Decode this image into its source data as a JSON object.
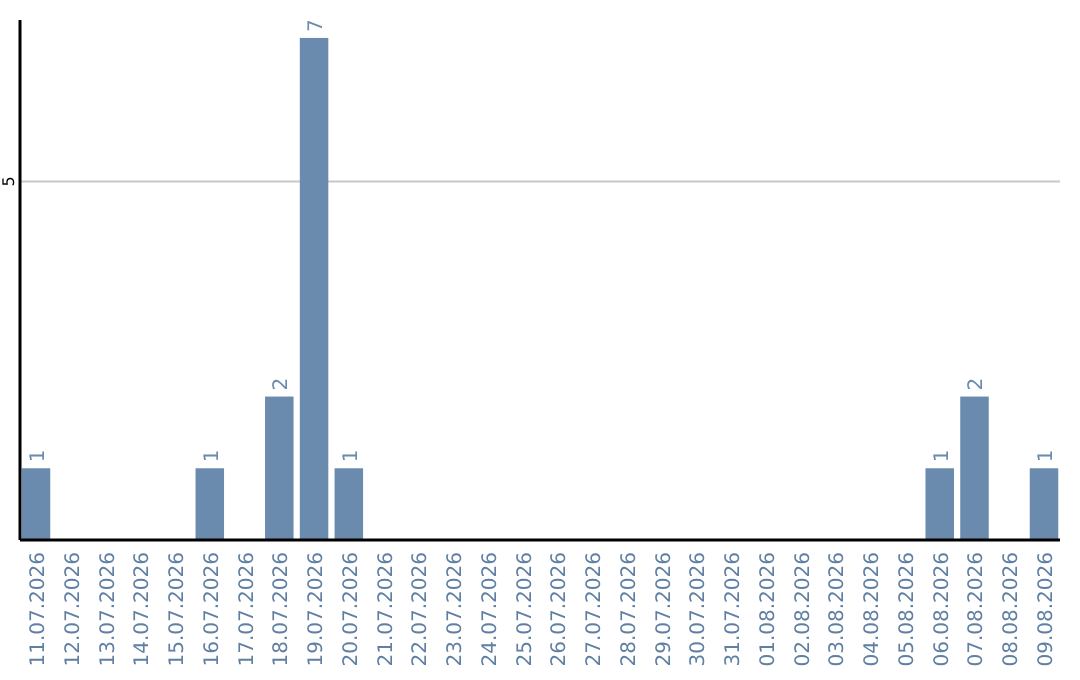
{
  "chart_data": {
    "type": "bar",
    "categories": [
      "11.07.2026",
      "12.07.2026",
      "13.07.2026",
      "14.07.2026",
      "15.07.2026",
      "16.07.2026",
      "17.07.2026",
      "18.07.2026",
      "19.07.2026",
      "20.07.2026",
      "21.07.2026",
      "22.07.2026",
      "23.07.2026",
      "24.07.2026",
      "25.07.2026",
      "26.07.2026",
      "27.07.2026",
      "28.07.2026",
      "29.07.2026",
      "30.07.2026",
      "31.07.2026",
      "01.08.2026",
      "02.08.2026",
      "03.08.2026",
      "04.08.2026",
      "05.08.2026",
      "06.08.2026",
      "07.08.2026",
      "08.08.2026",
      "09.08.2026"
    ],
    "values": [
      1,
      0,
      0,
      0,
      0,
      1,
      0,
      2,
      7,
      1,
      0,
      0,
      0,
      0,
      0,
      0,
      0,
      0,
      0,
      0,
      0,
      0,
      0,
      0,
      0,
      0,
      1,
      2,
      0,
      1
    ],
    "value_labels": [
      "1",
      null,
      null,
      null,
      null,
      "1",
      null,
      "2",
      "7",
      "1",
      null,
      null,
      null,
      null,
      null,
      null,
      null,
      null,
      null,
      null,
      null,
      null,
      null,
      null,
      null,
      null,
      "1",
      "2",
      null,
      "1"
    ],
    "color": "#6a8bad",
    "ylim": [
      0,
      7.25
    ],
    "yticks": [
      5
    ],
    "grid": "y"
  }
}
